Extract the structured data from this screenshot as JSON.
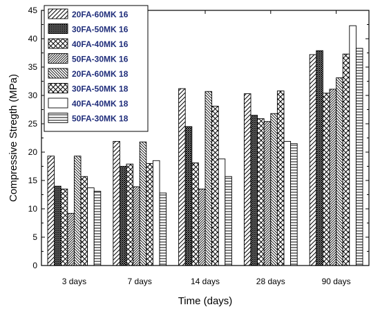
{
  "chart_data": {
    "type": "bar",
    "xlabel": "Time (days)",
    "ylabel": "Compressive Stregth (MPa)",
    "ylim": [
      0,
      45
    ],
    "yticks": [
      0,
      5,
      10,
      15,
      20,
      25,
      30,
      35,
      40,
      45
    ],
    "grid": false,
    "legend_position": "top-left",
    "categories": [
      "3 days",
      "7 days",
      "14 days",
      "28 days",
      "90 days"
    ],
    "series": [
      {
        "name": "20FA-60MK 16",
        "pattern": "diag-right",
        "values": [
          19.3,
          21.9,
          31.2,
          30.3,
          37.2
        ]
      },
      {
        "name": "30FA-50MK 16",
        "pattern": "cross-dense",
        "values": [
          14.0,
          17.5,
          24.5,
          26.5,
          37.9
        ]
      },
      {
        "name": "40FA-40MK 16",
        "pattern": "cross-x",
        "values": [
          13.5,
          17.9,
          18.1,
          25.9,
          30.4
        ]
      },
      {
        "name": "50FA-30MK 16",
        "pattern": "diag-right-dense",
        "values": [
          9.2,
          13.9,
          13.5,
          25.4,
          31.1
        ]
      },
      {
        "name": "20FA-60MK 18",
        "pattern": "diag-left",
        "values": [
          19.3,
          21.8,
          30.7,
          26.8,
          33.1
        ]
      },
      {
        "name": "30FA-50MK 18",
        "pattern": "cross-x",
        "values": [
          15.7,
          18.0,
          28.1,
          30.8,
          37.3
        ]
      },
      {
        "name": "40FA-40MK 18",
        "pattern": "none",
        "values": [
          13.7,
          18.5,
          18.8,
          21.9,
          42.3
        ]
      },
      {
        "name": "50FA-30MK 18",
        "pattern": "horizontal",
        "values": [
          13.1,
          12.8,
          15.7,
          21.5,
          38.3
        ]
      }
    ]
  }
}
